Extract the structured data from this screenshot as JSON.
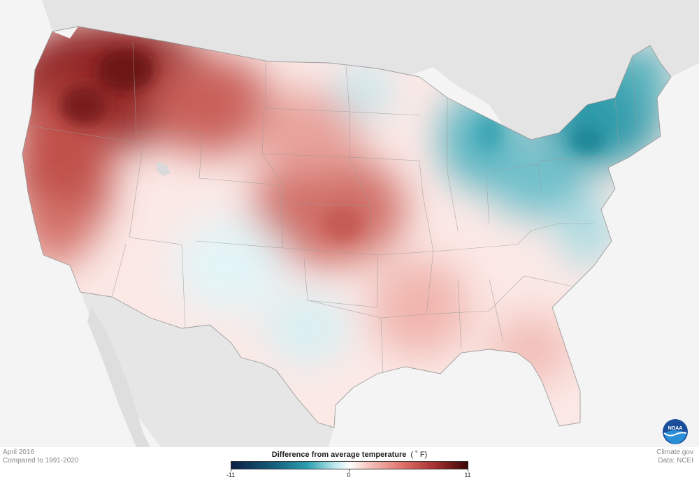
{
  "footer": {
    "date": "April 2016",
    "baseline": "Compared to 1991-2020",
    "credit_site": "Climate.gov",
    "credit_data": "Data: NCEI"
  },
  "legend": {
    "title": "Difference from average temperature",
    "unit": "( ˚ F)",
    "min_label": "-11",
    "mid_label": "0",
    "max_label": "11",
    "colors": [
      "#0c1e45",
      "#145f7a",
      "#2a9eae",
      "#bfe8ed",
      "#ffffff",
      "#f4c4bd",
      "#e0736b",
      "#a83030",
      "#3d0606"
    ]
  },
  "logo": {
    "text": "NOAA",
    "icon": "noaa-logo-icon"
  },
  "map": {
    "warm_color": "#a83030",
    "cool_color": "#2a9eae",
    "land_outside_color": "#e2e2e2",
    "water_color": "#f4f4f4"
  }
}
